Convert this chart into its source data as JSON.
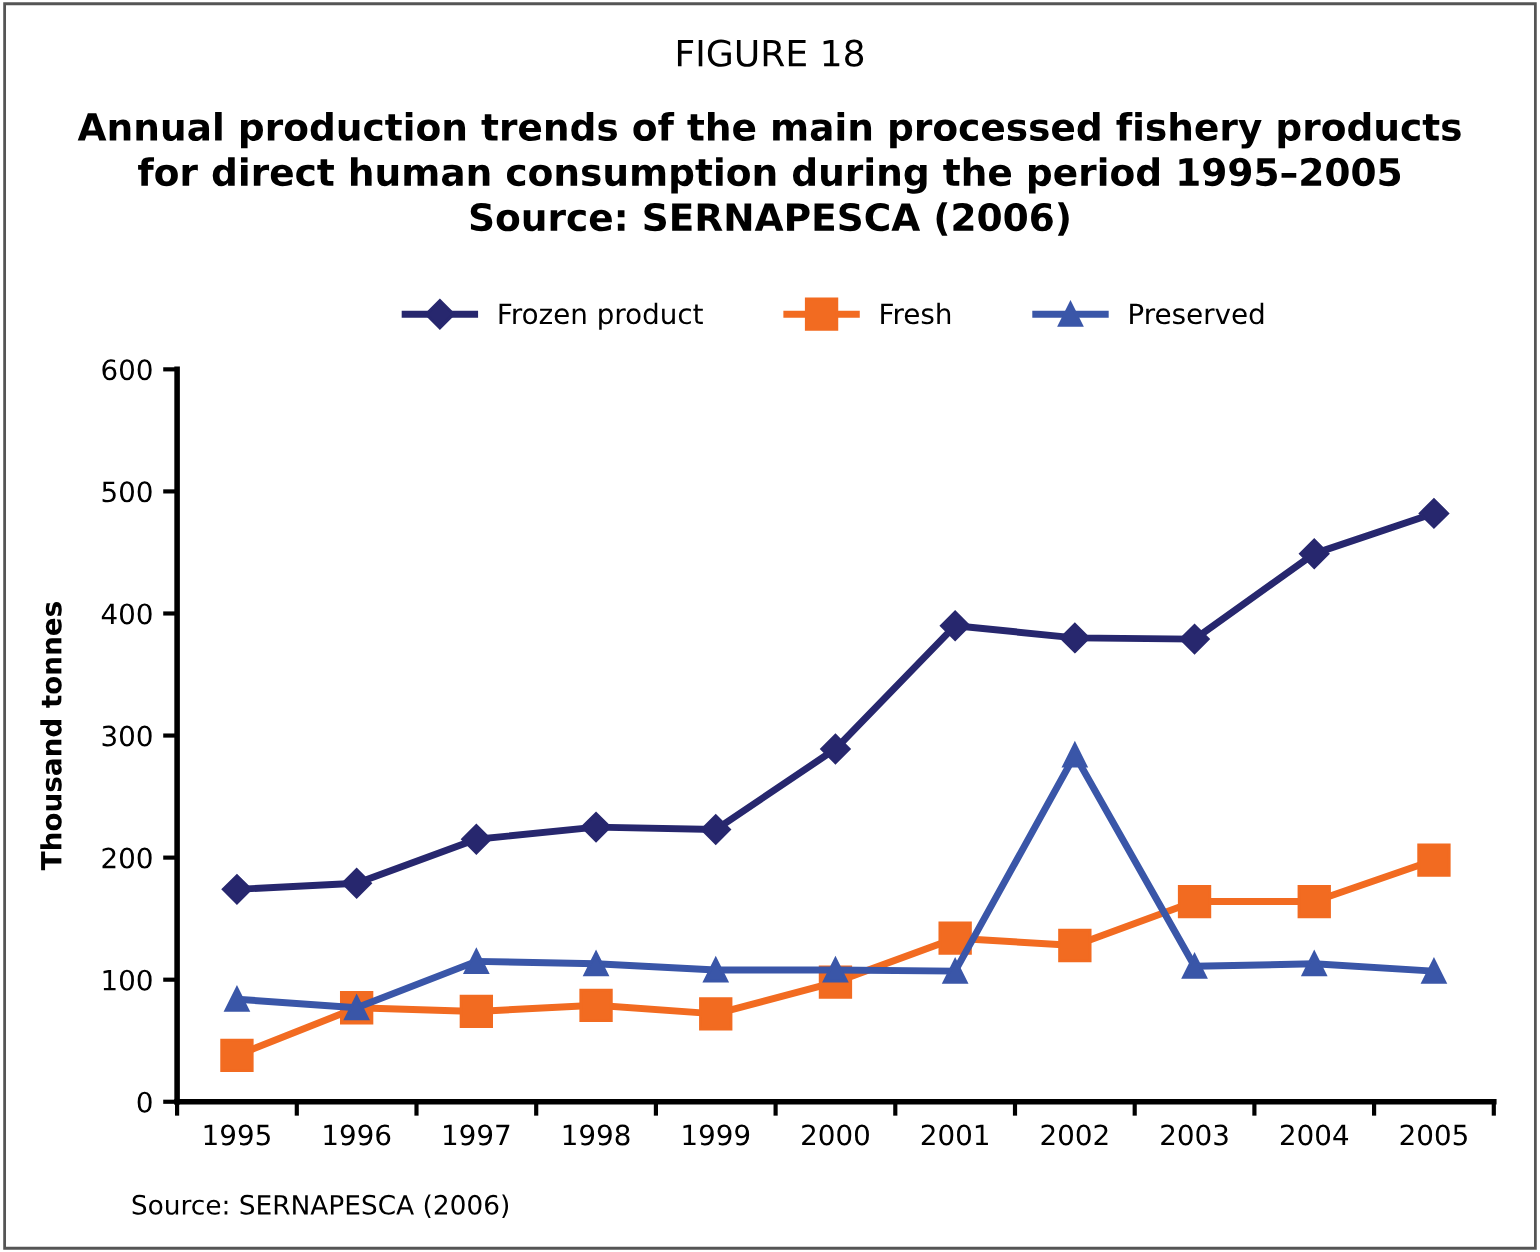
{
  "chart_data": {
    "type": "line",
    "title": "FIGURE 18",
    "subtitle": "Annual production trends of the main processed fishery products\nfor direct human consumption during the period 1995–2005\nSource: SERNAPESCA (2006)",
    "ylabel": "Thousand tonnes",
    "categories": [
      "1995",
      "1996",
      "1997",
      "1998",
      "1999",
      "2000",
      "2001",
      "2002",
      "2003",
      "2004",
      "2005"
    ],
    "series": [
      {
        "name": "Frozen product",
        "color": "#27276e",
        "marker": "diamond",
        "values": [
          174,
          179,
          215,
          225,
          223,
          289,
          390,
          380,
          379,
          449,
          482
        ]
      },
      {
        "name": "Fresh",
        "color": "#f26b21",
        "marker": "square",
        "values": [
          38,
          77,
          74,
          79,
          72,
          98,
          134,
          128,
          164,
          164,
          198
        ]
      },
      {
        "name": "Preserved",
        "color": "#3a56a8",
        "marker": "triangle",
        "values": [
          84,
          77,
          115,
          113,
          108,
          108,
          107,
          284,
          111,
          113,
          107
        ]
      }
    ],
    "ylim": [
      0,
      600
    ],
    "yticks": [
      0,
      100,
      200,
      300,
      400,
      500,
      600
    ],
    "grid": false,
    "legend": "top",
    "line_style": "solid",
    "annotations": [
      "Source: SERNAPESCA (2006)"
    ]
  }
}
